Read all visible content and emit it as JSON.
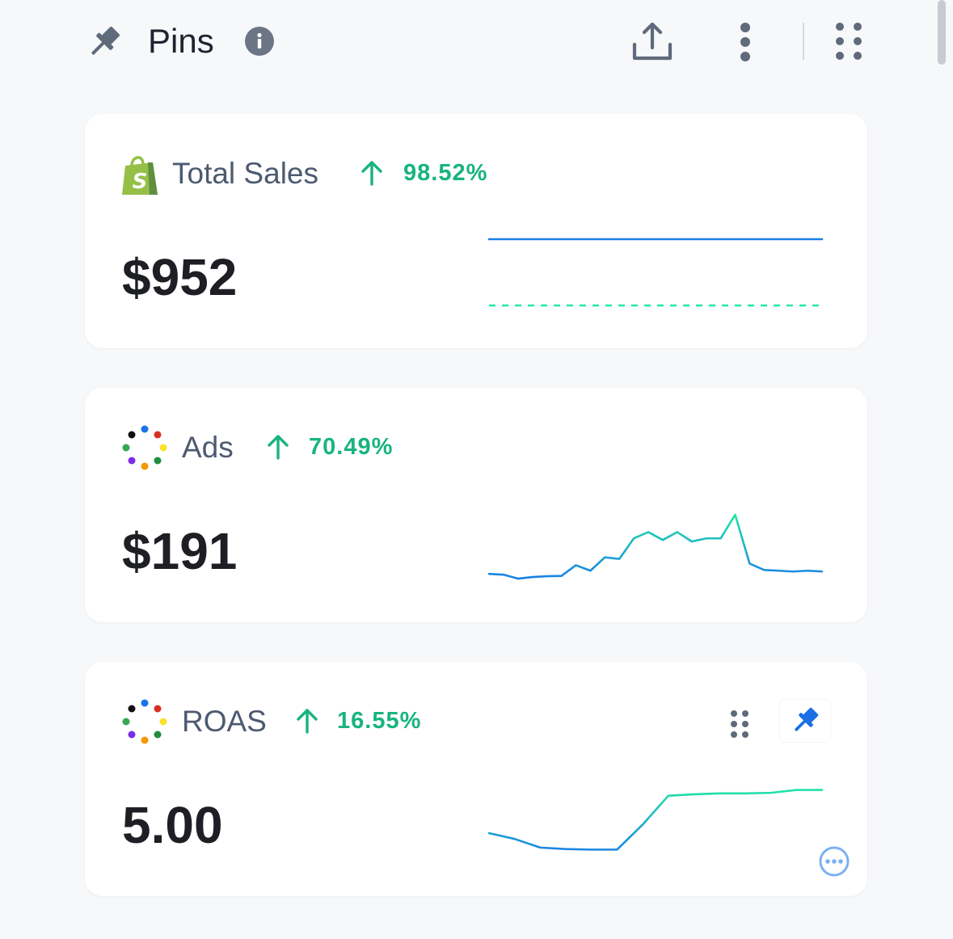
{
  "header": {
    "title": "Pins",
    "pin_icon": "pushpin-icon",
    "info_icon": "info-icon",
    "export_icon": "share-upload-icon",
    "more_icon": "vertical-ellipsis-icon",
    "grid_icon": "grid-dots-icon"
  },
  "cards": [
    {
      "title": "Total Sales",
      "logo": "shopify-bag-icon",
      "change": "98.52%",
      "value": "$952",
      "sparkline": {
        "current": [
          1,
          1,
          1,
          1,
          1,
          1,
          1,
          1,
          1,
          1,
          1,
          1,
          1,
          1,
          1,
          1,
          1,
          1,
          1,
          1,
          1,
          1,
          1,
          1
        ],
        "previous": [
          0,
          0,
          0,
          0,
          0,
          0,
          0,
          0,
          0,
          0,
          0,
          0,
          0,
          0,
          0,
          0,
          0,
          0,
          0,
          0,
          0,
          0,
          0,
          0
        ],
        "min": 0,
        "max": 1
      }
    },
    {
      "title": "Ads",
      "logo": "multicolor-dots-icon",
      "change": "70.49%",
      "value": "$191",
      "sparkline": {
        "current": [
          3.5,
          3,
          0.5,
          1.5,
          2,
          2.2,
          9,
          5.5,
          14,
          13,
          26,
          30,
          25,
          30,
          24,
          26,
          26,
          41,
          10,
          6,
          5.5,
          5,
          5.5,
          5
        ],
        "min": 0,
        "max": 42
      }
    },
    {
      "title": "ROAS",
      "logo": "multicolor-dots-icon",
      "change": "16.55%",
      "value": "5.00",
      "drag_icon": "drag-handle-icon",
      "pin_toggle_icon": "pin-filled-icon",
      "options_icon": "more-options-circle-icon",
      "sparkline": {
        "current": [
          3.7,
          3.5,
          3.2,
          3.15,
          3.13,
          3.13,
          4,
          5,
          5.05,
          5.08,
          5.08,
          5.1,
          5.2,
          5.2
        ],
        "min": 3,
        "max": 5.3
      }
    }
  ],
  "colors": {
    "positive": "#18b47e",
    "line_low": "#1a7fe6",
    "line_high": "#22e8a6",
    "pin_active": "#1a6fe6"
  }
}
